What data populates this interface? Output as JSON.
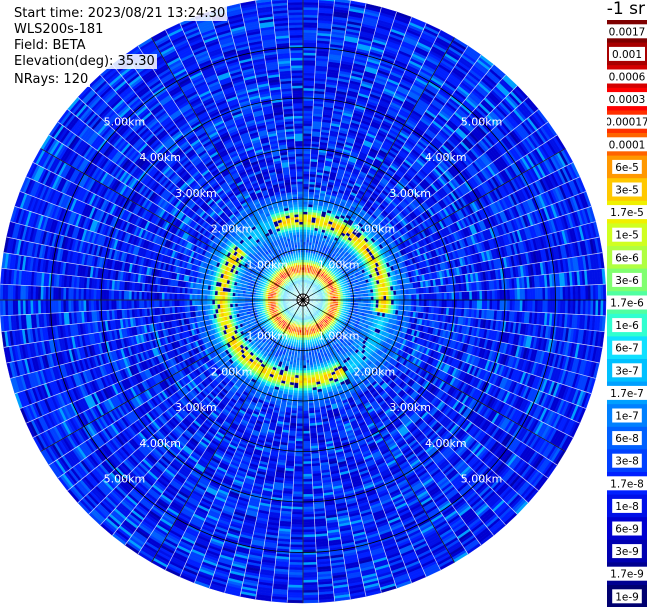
{
  "header": {
    "start_time": "Start time: 2023/08/21 13:24:30",
    "instrument": "WLS200s-181",
    "field": "Field: BETA",
    "elevation": "Elevation(deg): 35.30",
    "nrays": "NRays: 120"
  },
  "colorbar": {
    "title": "-1 sr",
    "ticks": [
      "0.0017",
      "0.001",
      "0.0006",
      "0.0003",
      "0.00017",
      "0.0001",
      "6e-5",
      "3e-5",
      "1.7e-5",
      "1e-5",
      "6e-6",
      "3e-6",
      "1.7e-6",
      "1e-6",
      "6e-7",
      "3e-7",
      "1.7e-7",
      "1e-7",
      "6e-8",
      "3e-8",
      "1.7e-8",
      "1e-8",
      "6e-9",
      "3e-9",
      "1.7e-9",
      "1e-9"
    ],
    "colors": [
      "#7f0000",
      "#a80000",
      "#d40000",
      "#ff0000",
      "#ff3000",
      "#ff6400",
      "#ff9800",
      "#ffc800",
      "#f0f000",
      "#d0ff20",
      "#b0ff40",
      "#80ff70",
      "#50ffa0",
      "#30ffd0",
      "#10e0ff",
      "#00c0ff",
      "#00a0ff",
      "#0080ff",
      "#0060ff",
      "#0040ff",
      "#0020ff",
      "#0010e8",
      "#0000d0",
      "#0000b0",
      "#000090",
      "#000070"
    ]
  },
  "chart_data": {
    "type": "heatmap",
    "projection": "polar (PPI)",
    "title": "",
    "field": "BETA",
    "units": "-1 sr",
    "scale": "log",
    "range_rings_km": [
      1,
      2,
      3,
      4,
      5
    ],
    "range_labels": [
      "1.00km",
      "2.00km",
      "3.00km",
      "4.00km",
      "5.00km"
    ],
    "max_range_km": 6,
    "n_rays": 120,
    "grid": true,
    "features": [
      {
        "name": "inner enhanced ring",
        "range_km": [
          0.4,
          0.9
        ],
        "level": "1e-5 to 1e-4"
      },
      {
        "name": "outer enhanced arcs",
        "range_km": [
          1.3,
          2.0
        ],
        "level": "1e-5 to 1e-4"
      },
      {
        "name": "background",
        "range_km": [
          2.0,
          6.0
        ],
        "level": "3e-9 to 1.7e-7"
      }
    ]
  }
}
